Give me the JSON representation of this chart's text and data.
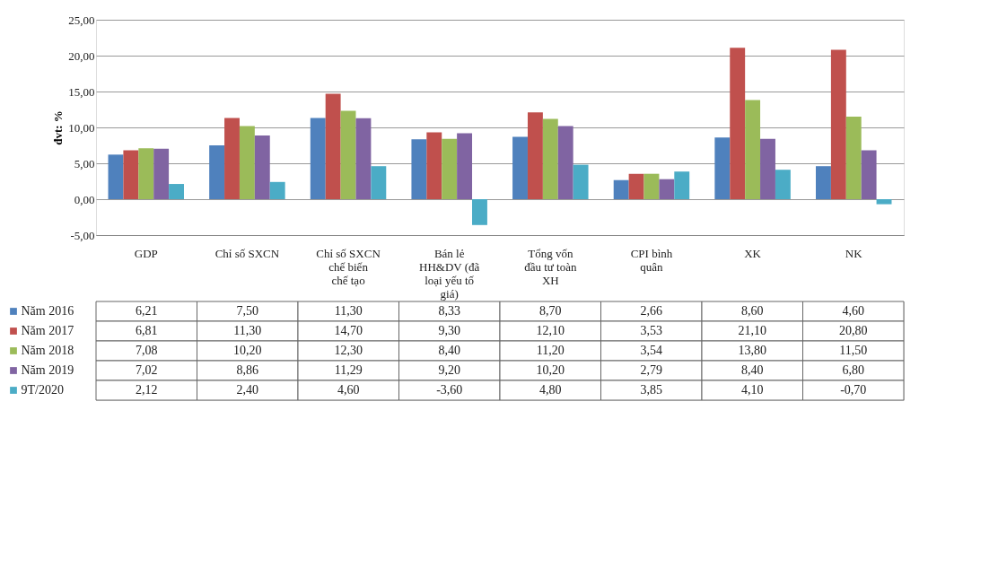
{
  "chart_data": {
    "type": "bar",
    "ylabel": "đvt: %",
    "categories": [
      "GDP",
      "Chỉ số SXCN",
      "Chỉ số SXCN chế biến chế tạo",
      "Bán lẻ HH&DV (đã loại yếu tố giá)",
      "Tổng vốn đầu tư toàn XH",
      "CPI bình quân",
      "XK",
      "NK"
    ],
    "series": [
      {
        "name": "Năm 2016",
        "color": "#4f81bd",
        "values": [
          6.21,
          7.5,
          11.3,
          8.33,
          8.7,
          2.66,
          8.6,
          4.6
        ],
        "value_labels": [
          "6,21",
          "7,50",
          "11,30",
          "8,33",
          "8,70",
          "2,66",
          "8,60",
          "4,60"
        ]
      },
      {
        "name": "Năm 2017",
        "color": "#c0504d",
        "values": [
          6.81,
          11.3,
          14.7,
          9.3,
          12.1,
          3.53,
          21.1,
          20.8
        ],
        "value_labels": [
          "6,81",
          "11,30",
          "14,70",
          "9,30",
          "12,10",
          "3,53",
          "21,10",
          "20,80"
        ]
      },
      {
        "name": "Năm 2018",
        "color": "#9bbb59",
        "values": [
          7.08,
          10.2,
          12.3,
          8.4,
          11.2,
          3.54,
          13.8,
          11.5
        ],
        "value_labels": [
          "7,08",
          "10,20",
          "12,30",
          "8,40",
          "11,20",
          "3,54",
          "13,80",
          "11,50"
        ]
      },
      {
        "name": "Năm 2019",
        "color": "#8064a2",
        "values": [
          7.02,
          8.86,
          11.29,
          9.2,
          10.2,
          2.79,
          8.4,
          6.8
        ],
        "value_labels": [
          "7,02",
          "8,86",
          "11,29",
          "9,20",
          "10,20",
          "2,79",
          "8,40",
          "6,80"
        ]
      },
      {
        "name": "9T/2020",
        "color": "#4bacc6",
        "values": [
          2.12,
          2.4,
          4.6,
          -3.6,
          4.8,
          3.85,
          4.1,
          -0.7
        ],
        "value_labels": [
          "2,12",
          "2,40",
          "4,60",
          "-3,60",
          "4,80",
          "3,85",
          "4,10",
          "-0,70"
        ]
      }
    ],
    "ylim": [
      -5,
      25
    ],
    "yticks": [
      {
        "value": -5,
        "label": "-5,00"
      },
      {
        "value": 0,
        "label": "0,00"
      },
      {
        "value": 5,
        "label": "5,00"
      },
      {
        "value": 10,
        "label": "10,00"
      },
      {
        "value": 15,
        "label": "15,00"
      },
      {
        "value": 20,
        "label": "20,00"
      },
      {
        "value": 25,
        "label": "25,00"
      }
    ],
    "grid": "y",
    "legend": "bottom left"
  }
}
